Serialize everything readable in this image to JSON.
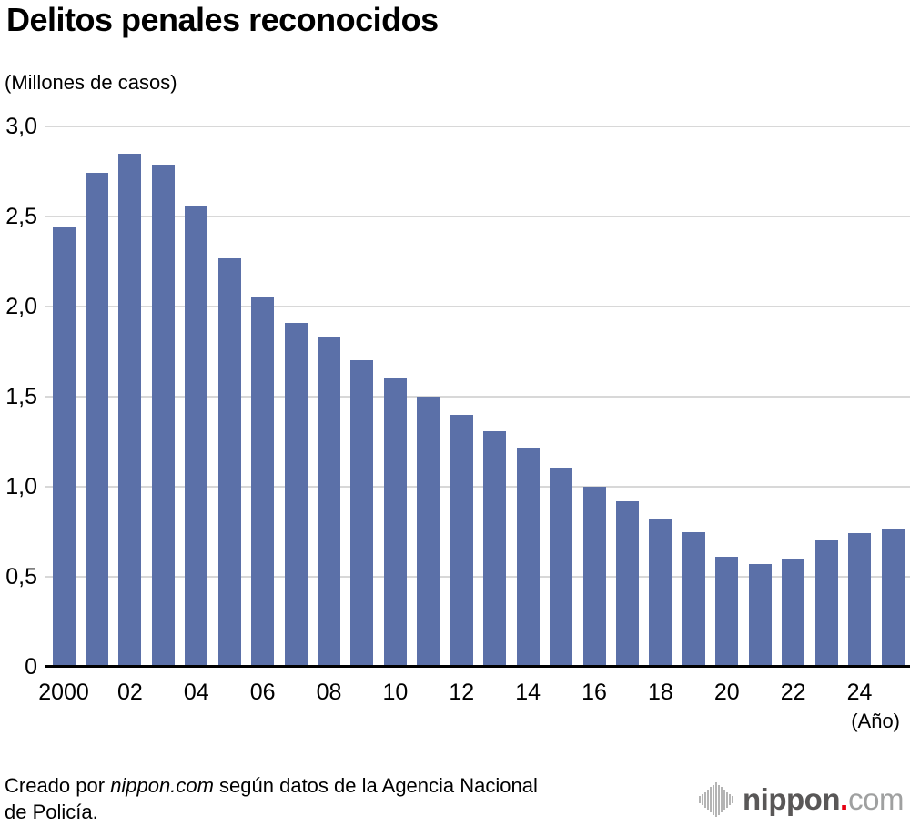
{
  "title": "Delitos penales reconocidos",
  "unit_label": "(Millones de casos)",
  "x_unit_label": "(Año)",
  "footer": {
    "prefix": "Creado por ",
    "brand": "nippon.com",
    "line1_suffix": " según datos de la Agencia Nacional",
    "line2": "de Policía."
  },
  "logo": {
    "icon": "sound-wave-bars-icon",
    "name": "nippon",
    "dot": ".",
    "tld": "com"
  },
  "colors": {
    "bar": "#5b70a8",
    "grid": "#d8d8d8",
    "axis": "#000000",
    "logo_dark_gray": "#595757",
    "logo_light_gray": "#9fa0a0",
    "logo_red": "#e60012",
    "logo_icon_gray": "#b4b4b4"
  },
  "chart_data": {
    "type": "bar",
    "title": "Delitos penales reconocidos",
    "ylabel": "(Millones de casos)",
    "xlabel": "(Año)",
    "years": [
      2000,
      2001,
      2002,
      2003,
      2004,
      2005,
      2006,
      2007,
      2008,
      2009,
      2010,
      2011,
      2012,
      2013,
      2014,
      2015,
      2016,
      2017,
      2018,
      2019,
      2020,
      2021,
      2022,
      2023,
      2024,
      2025
    ],
    "values": [
      2.44,
      2.74,
      2.85,
      2.79,
      2.56,
      2.27,
      2.05,
      1.91,
      1.83,
      1.7,
      1.6,
      1.5,
      1.4,
      1.31,
      1.21,
      1.1,
      1.0,
      0.92,
      0.82,
      0.75,
      0.61,
      0.57,
      0.6,
      0.7,
      0.74,
      0.77
    ],
    "x_tick_labels": [
      "2000",
      "",
      "02",
      "",
      "04",
      "",
      "06",
      "",
      "08",
      "",
      "10",
      "",
      "12",
      "",
      "14",
      "",
      "16",
      "",
      "18",
      "",
      "20",
      "",
      "22",
      "",
      "24",
      ""
    ],
    "y_ticks": [
      0,
      0.5,
      1.0,
      1.5,
      2.0,
      2.5,
      3.0
    ],
    "y_tick_labels": [
      "0",
      "0,5",
      "1,0",
      "1,5",
      "2,0",
      "2,5",
      "3,0"
    ],
    "ylim": [
      0,
      3.0
    ],
    "grid": "horizontal",
    "legend": "none",
    "bar_color": "#5b70a8"
  }
}
